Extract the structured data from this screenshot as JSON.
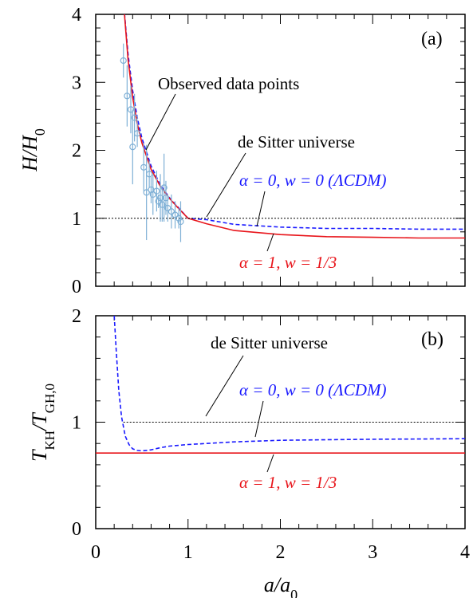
{
  "chart_data": [
    {
      "type": "line",
      "panel_label": "(a)",
      "xlabel_html": "a/a0",
      "ylabel": {
        "main": "H/H",
        "sub": "0"
      },
      "xlim": [
        0,
        4
      ],
      "ylim": [
        0,
        4
      ],
      "x_ticks": [
        "0",
        "1",
        "2",
        "3",
        "4"
      ],
      "y_ticks": [
        "0",
        "1",
        "2",
        "3",
        "4"
      ],
      "series": [
        {
          "name": "α = 0, w = 0 (ΛCDM)",
          "style": "dashed",
          "color": "#1a1aff",
          "points": [
            [
              0.3,
              4.2
            ],
            [
              0.35,
              3.42
            ],
            [
              0.4,
              2.88
            ],
            [
              0.45,
              2.48
            ],
            [
              0.5,
              2.18
            ],
            [
              0.6,
              1.77
            ],
            [
              0.7,
              1.49
            ],
            [
              0.8,
              1.3
            ],
            [
              0.9,
              1.15
            ],
            [
              1.0,
              1.0
            ],
            [
              1.2,
              0.98
            ],
            [
              1.5,
              0.91
            ],
            [
              2.0,
              0.87
            ],
            [
              2.5,
              0.85
            ],
            [
              3.0,
              0.85
            ],
            [
              3.5,
              0.84
            ],
            [
              4.0,
              0.84
            ]
          ]
        },
        {
          "name": "α = 1, w = 1/3",
          "style": "solid",
          "color": "#e8141a",
          "points": [
            [
              0.3,
              4.2
            ],
            [
              0.35,
              3.34
            ],
            [
              0.4,
              2.78
            ],
            [
              0.45,
              2.39
            ],
            [
              0.5,
              2.11
            ],
            [
              0.6,
              1.72
            ],
            [
              0.7,
              1.47
            ],
            [
              0.8,
              1.29
            ],
            [
              0.9,
              1.14
            ],
            [
              1.0,
              1.0
            ],
            [
              1.2,
              0.92
            ],
            [
              1.5,
              0.82
            ],
            [
              2.0,
              0.76
            ],
            [
              2.5,
              0.73
            ],
            [
              3.0,
              0.72
            ],
            [
              3.5,
              0.71
            ],
            [
              4.0,
              0.71
            ]
          ]
        },
        {
          "name": "de Sitter universe",
          "style": "dotted",
          "color": "#000000",
          "points": [
            [
              0,
              1
            ],
            [
              4,
              1
            ]
          ]
        }
      ],
      "observed_points": [
        {
          "x": 0.3,
          "y": 3.32,
          "err": 0.25
        },
        {
          "x": 0.34,
          "y": 2.8,
          "err": 0.45
        },
        {
          "x": 0.38,
          "y": 2.6,
          "err": 0.35
        },
        {
          "x": 0.4,
          "y": 2.05,
          "err": 0.55
        },
        {
          "x": 0.42,
          "y": 2.48,
          "err": 0.35
        },
        {
          "x": 0.45,
          "y": 2.25,
          "err": 0.2
        },
        {
          "x": 0.52,
          "y": 1.75,
          "err": 0.35
        },
        {
          "x": 0.55,
          "y": 1.38,
          "err": 0.7
        },
        {
          "x": 0.58,
          "y": 1.65,
          "err": 0.2
        },
        {
          "x": 0.6,
          "y": 1.42,
          "err": 0.2
        },
        {
          "x": 0.62,
          "y": 1.35,
          "err": 0.3
        },
        {
          "x": 0.66,
          "y": 1.4,
          "err": 0.3
        },
        {
          "x": 0.68,
          "y": 1.25,
          "err": 0.1
        },
        {
          "x": 0.7,
          "y": 1.3,
          "err": 0.35
        },
        {
          "x": 0.72,
          "y": 1.2,
          "err": 0.25
        },
        {
          "x": 0.74,
          "y": 1.45,
          "err": 0.5
        },
        {
          "x": 0.76,
          "y": 1.3,
          "err": 0.25
        },
        {
          "x": 0.78,
          "y": 1.15,
          "err": 0.2
        },
        {
          "x": 0.82,
          "y": 1.1,
          "err": 0.25
        },
        {
          "x": 0.86,
          "y": 1.05,
          "err": 0.2
        },
        {
          "x": 0.9,
          "y": 1.0,
          "err": 0.15
        },
        {
          "x": 0.92,
          "y": 0.95,
          "err": 0.3
        }
      ],
      "annotations": {
        "observed": "Observed data points",
        "desitter": "de Sitter universe",
        "lcdm": "α = 0, w = 0 (ΛCDM)",
        "alpha1": "α = 1, w = 1/3"
      }
    },
    {
      "type": "line",
      "panel_label": "(b)",
      "ylabel": {
        "main": "T",
        "sub1": "KH",
        "slash": "/T",
        "sub2": "GH,0"
      },
      "xlim": [
        0,
        4
      ],
      "ylim": [
        0,
        2
      ],
      "x_ticks": [
        "0",
        "1",
        "2",
        "3",
        "4"
      ],
      "y_ticks": [
        "0",
        "1",
        "2"
      ],
      "series": [
        {
          "name": "α = 0, w = 0 (ΛCDM)",
          "style": "dashed",
          "color": "#1a1aff",
          "points": [
            [
              0.2,
              2.0
            ],
            [
              0.22,
              1.7
            ],
            [
              0.25,
              1.3
            ],
            [
              0.28,
              1.05
            ],
            [
              0.32,
              0.87
            ],
            [
              0.36,
              0.79
            ],
            [
              0.4,
              0.75
            ],
            [
              0.45,
              0.735
            ],
            [
              0.5,
              0.73
            ],
            [
              0.55,
              0.735
            ],
            [
              0.6,
              0.74
            ],
            [
              0.7,
              0.76
            ],
            [
              0.8,
              0.775
            ],
            [
              1.0,
              0.79
            ],
            [
              1.2,
              0.8
            ],
            [
              1.5,
              0.815
            ],
            [
              2.0,
              0.83
            ],
            [
              2.5,
              0.835
            ],
            [
              3.0,
              0.84
            ],
            [
              3.5,
              0.842
            ],
            [
              4.0,
              0.845
            ]
          ]
        },
        {
          "name": "α = 1, w = 1/3",
          "style": "solid",
          "color": "#e8141a",
          "points": [
            [
              0,
              0.71
            ],
            [
              4,
              0.71
            ]
          ]
        },
        {
          "name": "de Sitter universe",
          "style": "dotted",
          "color": "#000000",
          "points": [
            [
              0.3,
              1
            ],
            [
              4,
              1
            ]
          ]
        }
      ],
      "annotations": {
        "desitter": "de Sitter universe",
        "lcdm": "α = 0, w = 0 (ΛCDM)",
        "alpha1": "α = 1, w = 1/3"
      }
    }
  ],
  "xlabel": {
    "main": "a/a",
    "sub": "0"
  }
}
